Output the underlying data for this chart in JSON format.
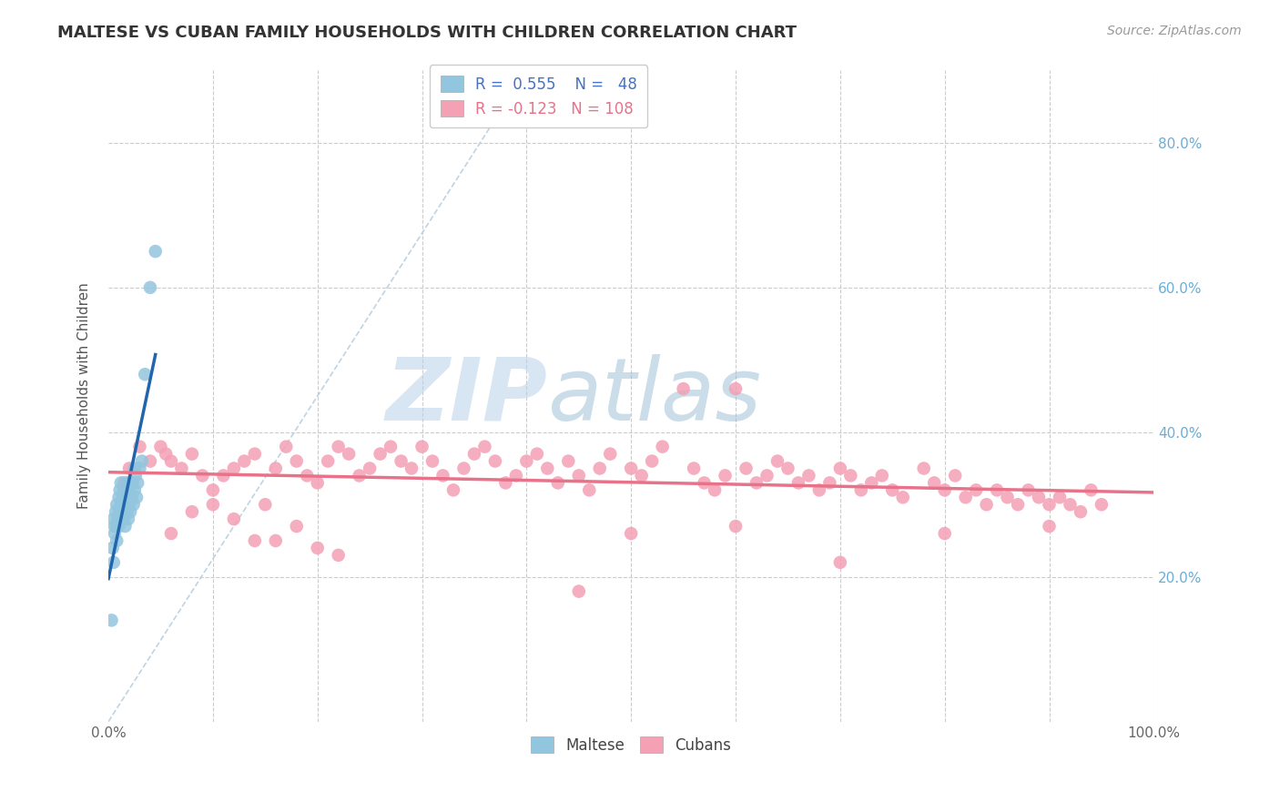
{
  "title": "MALTESE VS CUBAN FAMILY HOUSEHOLDS WITH CHILDREN CORRELATION CHART",
  "source_text": "Source: ZipAtlas.com",
  "ylabel": "Family Households with Children",
  "xlim": [
    0,
    100
  ],
  "ylim": [
    0,
    90
  ],
  "maltese_R": 0.555,
  "maltese_N": 48,
  "cuban_R": -0.123,
  "cuban_N": 108,
  "maltese_color": "#92c5de",
  "cuban_color": "#f4a0b5",
  "maltese_trend_color": "#2166ac",
  "cuban_trend_color": "#e8728a",
  "ref_line_color": "#b8cfe0",
  "background_color": "#ffffff",
  "grid_color": "#cccccc",
  "title_color": "#404040",
  "legend_color_maltese": "#4472c4",
  "legend_color_cuban": "#e8728a",
  "maltese_x": [
    0.3,
    0.5,
    0.5,
    0.6,
    0.7,
    0.8,
    0.8,
    0.9,
    1.0,
    1.0,
    1.1,
    1.1,
    1.2,
    1.2,
    1.3,
    1.3,
    1.4,
    1.5,
    1.5,
    1.6,
    1.6,
    1.7,
    1.8,
    1.8,
    1.9,
    2.0,
    2.0,
    2.1,
    2.2,
    2.3,
    2.4,
    2.5,
    2.6,
    2.7,
    2.8,
    3.0,
    3.2,
    3.5,
    4.0,
    4.5,
    0.4,
    0.6,
    0.8,
    1.0,
    1.2,
    1.5,
    2.0,
    2.5
  ],
  "maltese_y": [
    14,
    22,
    28,
    27,
    29,
    25,
    30,
    28,
    27,
    31,
    29,
    32,
    28,
    33,
    30,
    29,
    31,
    28,
    32,
    30,
    27,
    31,
    29,
    33,
    28,
    30,
    32,
    29,
    31,
    33,
    30,
    32,
    34,
    31,
    33,
    35,
    36,
    48,
    60,
    65,
    24,
    26,
    27,
    28,
    30,
    32,
    33,
    35
  ],
  "cuban_x": [
    1.5,
    2.0,
    3.0,
    4.0,
    5.0,
    5.5,
    6.0,
    7.0,
    8.0,
    9.0,
    10.0,
    11.0,
    12.0,
    13.0,
    14.0,
    15.0,
    16.0,
    17.0,
    18.0,
    19.0,
    20.0,
    21.0,
    22.0,
    23.0,
    24.0,
    25.0,
    26.0,
    27.0,
    28.0,
    29.0,
    30.0,
    31.0,
    32.0,
    33.0,
    34.0,
    35.0,
    36.0,
    37.0,
    38.0,
    39.0,
    40.0,
    41.0,
    42.0,
    43.0,
    44.0,
    45.0,
    46.0,
    47.0,
    48.0,
    50.0,
    51.0,
    52.0,
    53.0,
    55.0,
    56.0,
    57.0,
    58.0,
    59.0,
    60.0,
    61.0,
    62.0,
    63.0,
    64.0,
    65.0,
    66.0,
    67.0,
    68.0,
    69.0,
    70.0,
    71.0,
    72.0,
    73.0,
    74.0,
    75.0,
    76.0,
    78.0,
    79.0,
    80.0,
    81.0,
    82.0,
    83.0,
    84.0,
    85.0,
    86.0,
    87.0,
    88.0,
    89.0,
    90.0,
    91.0,
    92.0,
    93.0,
    94.0,
    95.0,
    6.0,
    8.0,
    10.0,
    12.0,
    14.0,
    16.0,
    18.0,
    20.0,
    22.0,
    50.0,
    60.0,
    70.0,
    80.0,
    90.0,
    45.0
  ],
  "cuban_y": [
    33,
    35,
    38,
    36,
    38,
    37,
    36,
    35,
    37,
    34,
    32,
    34,
    35,
    36,
    37,
    30,
    35,
    38,
    36,
    34,
    33,
    36,
    38,
    37,
    34,
    35,
    37,
    38,
    36,
    35,
    38,
    36,
    34,
    32,
    35,
    37,
    38,
    36,
    33,
    34,
    36,
    37,
    35,
    33,
    36,
    34,
    32,
    35,
    37,
    35,
    34,
    36,
    38,
    46,
    35,
    33,
    32,
    34,
    46,
    35,
    33,
    34,
    36,
    35,
    33,
    34,
    32,
    33,
    35,
    34,
    32,
    33,
    34,
    32,
    31,
    35,
    33,
    32,
    34,
    31,
    32,
    30,
    32,
    31,
    30,
    32,
    31,
    30,
    31,
    30,
    29,
    32,
    30,
    26,
    29,
    30,
    28,
    25,
    25,
    27,
    24,
    23,
    26,
    27,
    22,
    26,
    27,
    18
  ]
}
